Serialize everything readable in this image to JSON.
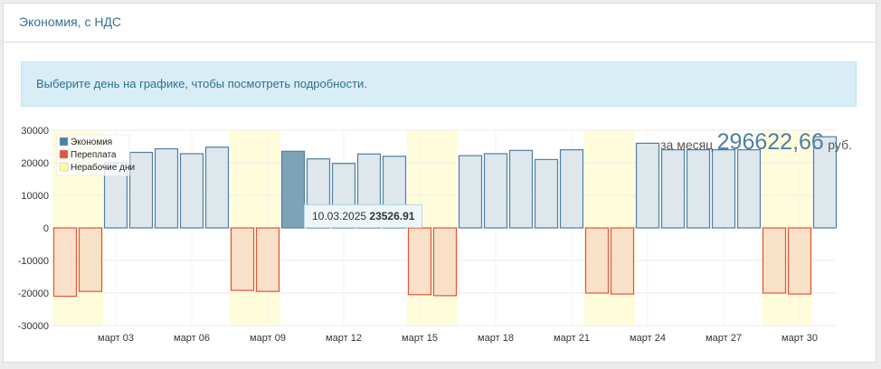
{
  "panel": {
    "title": "Экономия, с НДС",
    "info": "Выберите день на графике, чтобы посмотреть подробности."
  },
  "summary": {
    "prefix": "за месяц",
    "value": "296622,66",
    "suffix": "руб."
  },
  "tooltip": {
    "date": "10.03.2025",
    "value": "23526.91"
  },
  "colors": {
    "saving_fill": "#dde7ec",
    "saving_stroke": "#4f7fa3",
    "saving_selected": "#7fa3b6",
    "overpay_fill": "#f8e1c8",
    "overpay_stroke": "#e0553b",
    "nonwork": "#fffcdc"
  },
  "chart_data": {
    "type": "bar",
    "ylim": [
      -30000,
      30000
    ],
    "yticks": [
      30000,
      20000,
      10000,
      0,
      -10000,
      -20000,
      -30000
    ],
    "xtick_labels": [
      {
        "day": 3,
        "label": "март 03"
      },
      {
        "day": 6,
        "label": "март 06"
      },
      {
        "day": 9,
        "label": "март 09"
      },
      {
        "day": 12,
        "label": "март 12"
      },
      {
        "day": 15,
        "label": "март 15"
      },
      {
        "day": 18,
        "label": "март 18"
      },
      {
        "day": 21,
        "label": "март 21"
      },
      {
        "day": 24,
        "label": "март 24"
      },
      {
        "day": 27,
        "label": "март 27"
      },
      {
        "day": 30,
        "label": "март 30"
      }
    ],
    "legend": [
      "Экономия",
      "Переплата",
      "Нерабочие дни"
    ],
    "nonwork_days": [
      1,
      2,
      8,
      9,
      15,
      16,
      22,
      23,
      29,
      30
    ],
    "selected_day": 10,
    "days": [
      1,
      2,
      3,
      4,
      5,
      6,
      7,
      8,
      9,
      10,
      11,
      12,
      13,
      14,
      15,
      16,
      17,
      18,
      19,
      20,
      21,
      22,
      23,
      24,
      25,
      26,
      27,
      28,
      29,
      30,
      31
    ],
    "saving": [
      0,
      0,
      20000,
      23200,
      24300,
      22800,
      24800,
      0,
      0,
      23526.91,
      21200,
      19800,
      22700,
      22000,
      0,
      0,
      22200,
      22800,
      23800,
      21000,
      24000,
      0,
      0,
      26000,
      24000,
      24000,
      24000,
      24000,
      0,
      0,
      28000
    ],
    "overpay": [
      -21000,
      -19500,
      0,
      0,
      0,
      0,
      0,
      -19200,
      -19500,
      0,
      0,
      0,
      0,
      0,
      -20500,
      -20800,
      0,
      0,
      0,
      0,
      0,
      -20000,
      -20300,
      0,
      0,
      0,
      0,
      0,
      -20000,
      -20300,
      0
    ]
  }
}
